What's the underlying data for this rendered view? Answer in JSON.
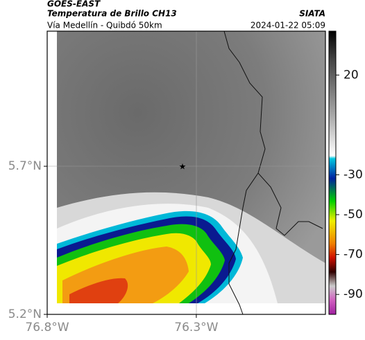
{
  "header": {
    "source": "GOES-EAST",
    "title": "Temperatura de Brillo CH13",
    "subtitle": "Vía Medellín - Quibdó 50km",
    "credit": "SIATA",
    "timestamp": "2024-01-22 05:09"
  },
  "map": {
    "lat_range": [
      5.2,
      6.156
    ],
    "lon_range": [
      -76.8,
      -75.867
    ],
    "lat_ticks": [
      {
        "value": 5.7,
        "label": "5.7°N"
      },
      {
        "value": 5.2,
        "label": "5.2°N"
      }
    ],
    "lon_ticks": [
      {
        "value": -76.8,
        "label": "76.8°W"
      },
      {
        "value": -76.3,
        "label": "76.3°W"
      }
    ]
  },
  "colorbar": {
    "range": [
      -100,
      42
    ],
    "ticks": [
      20,
      -30,
      -50,
      -70,
      -90
    ]
  }
}
